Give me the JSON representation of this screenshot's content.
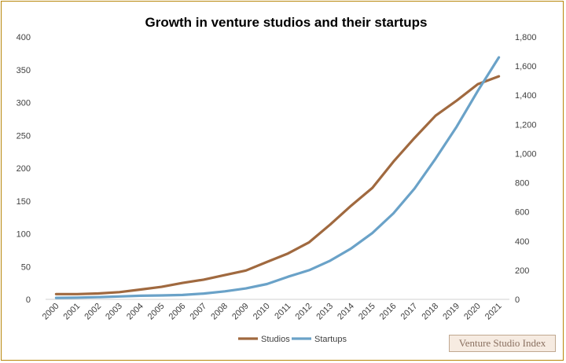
{
  "chart_data": {
    "type": "line",
    "title": "Growth in venture studios and their startups",
    "categories": [
      "2000",
      "2001",
      "2002",
      "2003",
      "2004",
      "2005",
      "2006",
      "2007",
      "2008",
      "2009",
      "2010",
      "2011",
      "2012",
      "2013",
      "2014",
      "2015",
      "2016",
      "2017",
      "2018",
      "2019",
      "2020",
      "2021"
    ],
    "series": [
      {
        "name": "Studios",
        "axis": "left",
        "color": "#a0693f",
        "values": [
          8,
          8,
          9,
          11,
          15,
          19,
          25,
          30,
          37,
          44,
          57,
          70,
          87,
          114,
          143,
          170,
          210,
          246,
          280,
          303,
          328,
          340
        ]
      },
      {
        "name": "Startups",
        "axis": "right",
        "color": "#6aa2c8",
        "values": [
          10,
          12,
          15,
          20,
          25,
          27,
          30,
          40,
          55,
          75,
          105,
          155,
          200,
          265,
          350,
          455,
          590,
          760,
          965,
          1185,
          1430,
          1660
        ]
      }
    ],
    "y_left": {
      "min": 0,
      "max": 400,
      "ticks": [
        "0",
        "50",
        "100",
        "150",
        "200",
        "250",
        "300",
        "350",
        "400"
      ]
    },
    "y_right": {
      "min": 0,
      "max": 1800,
      "ticks": [
        "0",
        "200",
        "400",
        "600",
        "800",
        "1,000",
        "1,200",
        "1,400",
        "1,600",
        "1,800"
      ]
    },
    "legend": "bottom-center",
    "grid": false
  },
  "watermark": "Venture Studio Index",
  "colors": {
    "frame": "#b8860b",
    "studios": "#a0693f",
    "startups": "#6aa2c8",
    "axis_text": "#404040"
  }
}
